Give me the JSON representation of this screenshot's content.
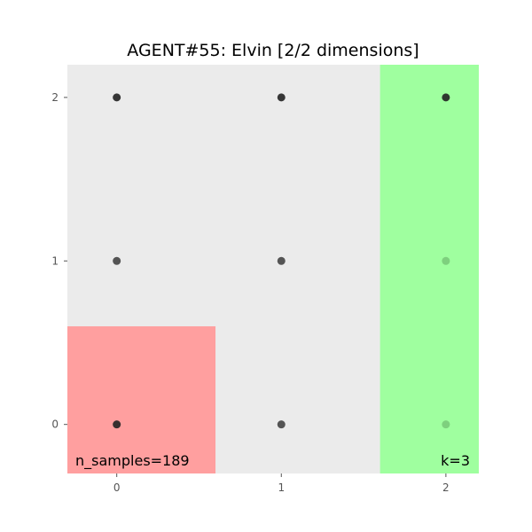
{
  "chart_data": {
    "type": "scatter",
    "title": "AGENT#55: Elvin [2/2 dimensions]",
    "xlabel": "",
    "ylabel": "",
    "xlim": [
      -0.3,
      2.2
    ],
    "ylim": [
      -0.3,
      2.2
    ],
    "x_ticks": [
      0,
      1,
      2
    ],
    "y_ticks": [
      0,
      1,
      2
    ],
    "grid": false,
    "background_color": "#ebebeb",
    "regions": [
      {
        "name": "red-region",
        "x": [
          -0.3,
          0.6
        ],
        "y": [
          -0.3,
          0.6
        ],
        "color": "#ff9f9f"
      },
      {
        "name": "green-region",
        "x": [
          1.6,
          2.2
        ],
        "y": [
          -0.3,
          2.2
        ],
        "color": "#9fff9f"
      }
    ],
    "points": [
      {
        "x": 0,
        "y": 2,
        "intensity": "dark"
      },
      {
        "x": 1,
        "y": 2,
        "intensity": "dark"
      },
      {
        "x": 2,
        "y": 2,
        "intensity": "dark"
      },
      {
        "x": 0,
        "y": 1,
        "intensity": "medium"
      },
      {
        "x": 1,
        "y": 1,
        "intensity": "medium"
      },
      {
        "x": 2,
        "y": 1,
        "intensity": "faint"
      },
      {
        "x": 0,
        "y": 0,
        "intensity": "dark"
      },
      {
        "x": 1,
        "y": 0,
        "intensity": "medium"
      },
      {
        "x": 2,
        "y": 0,
        "intensity": "faint"
      }
    ],
    "point_colors": {
      "dark": "#222222",
      "medium": "#444444",
      "faint": "#7acb7a"
    },
    "annotations": {
      "n_samples": "n_samples=189",
      "k": "k=3"
    }
  }
}
